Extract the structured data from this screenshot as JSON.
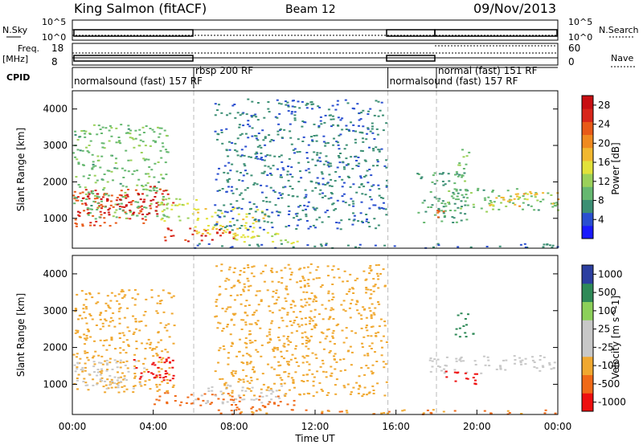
{
  "header": {
    "title": "King Salmon (fitACF)",
    "beam": "Beam 12",
    "date": "09/Nov/2013"
  },
  "summary_panel": {
    "nsky_label": "N.Sky",
    "nsky_ticks": [
      "10^5",
      "10^0"
    ],
    "nsearch_label": "N.Search",
    "nsearch_ticks": [
      "10^5",
      "10^0"
    ],
    "freq_label_1": "Freq.",
    "freq_label_2": "[MHz]",
    "freq_ticks": [
      "18",
      "8"
    ],
    "nave_label": "Nave",
    "nave_ticks": [
      "60",
      "0"
    ],
    "cpid_label": "CPID",
    "cpid_segments": [
      {
        "label": "normalsound (fast) 157 RF",
        "start": 0.0,
        "end": 6.0
      },
      {
        "label": "rbsp 200 RF",
        "start": 6.0,
        "end": 15.6
      },
      {
        "label": "normalsound (fast) 157 RF",
        "start": 15.6,
        "end": 18.0
      },
      {
        "label": "normal (fast) 151 RF",
        "start": 18.0,
        "end": 24.0
      }
    ]
  },
  "colors": {
    "power_scale": [
      "#1a1aff",
      "#2a4fd0",
      "#3c8f74",
      "#66b870",
      "#9bd15a",
      "#e2e23a",
      "#f2b830",
      "#f08a20",
      "#e85a18",
      "#d8261a",
      "#c80f12"
    ],
    "velocity_scale": [
      "#ee1010",
      "#f06a18",
      "#f0a830",
      "#c8c8c8",
      "#c8c8c8",
      "#8cd05a",
      "#2f8a58",
      "#2c3fa0"
    ]
  },
  "chart_data": [
    {
      "type": "heatmap",
      "name": "Power panel",
      "xlabel": "",
      "ylabel": "Slant Range [km]",
      "xlim": [
        0,
        24
      ],
      "ylim": [
        180,
        4500
      ],
      "yticks": [
        "1000",
        "2000",
        "3000",
        "4000"
      ],
      "colorbar_label": "Power [dB]",
      "colorbar_ticks": [
        "4",
        "8",
        "12",
        "16",
        "20",
        "24",
        "28"
      ],
      "colorbar_range": [
        0,
        30
      ],
      "cells": [
        {
          "x0": 0.0,
          "x1": 3.9,
          "y0": 800,
          "y1": 1900,
          "v": 24
        },
        {
          "x0": 0.0,
          "x1": 4.8,
          "y0": 1000,
          "y1": 3600,
          "v": 10
        },
        {
          "x0": 0.2,
          "x1": 4.2,
          "y0": 1100,
          "y1": 1700,
          "v": 28
        },
        {
          "x0": 4.0,
          "x1": 5.0,
          "y0": 1300,
          "y1": 1900,
          "v": 26
        },
        {
          "x0": 4.2,
          "x1": 6.2,
          "y0": 900,
          "y1": 1600,
          "v": 14
        },
        {
          "x0": 4.5,
          "x1": 8.0,
          "y0": 380,
          "y1": 750,
          "v": 26
        },
        {
          "x0": 6.0,
          "x1": 9.5,
          "y0": 500,
          "y1": 1300,
          "v": 16
        },
        {
          "x0": 8.0,
          "x1": 11.2,
          "y0": 300,
          "y1": 650,
          "v": 14
        },
        {
          "x0": 6.0,
          "x1": 24.0,
          "y0": 200,
          "y1": 330,
          "v": 6
        },
        {
          "x0": 7.0,
          "x1": 15.5,
          "y0": 700,
          "y1": 4300,
          "v": 6
        },
        {
          "x0": 17.0,
          "x1": 19.5,
          "y0": 900,
          "y1": 2300,
          "v": 8
        },
        {
          "x0": 17.8,
          "x1": 18.3,
          "y0": 1000,
          "y1": 1300,
          "v": 22
        },
        {
          "x0": 18.0,
          "x1": 24.0,
          "y0": 1200,
          "y1": 1850,
          "v": 10
        },
        {
          "x0": 20.5,
          "x1": 24.0,
          "y0": 1350,
          "y1": 1750,
          "v": 18
        },
        {
          "x0": 19.0,
          "x1": 19.6,
          "y0": 2000,
          "y1": 3000,
          "v": 10
        }
      ]
    },
    {
      "type": "heatmap",
      "name": "Velocity panel",
      "xlabel": "Time UT",
      "ylabel": "Slant Range [km]",
      "xlim": [
        0,
        24
      ],
      "ylim": [
        180,
        4500
      ],
      "yticks": [
        "1000",
        "2000",
        "3000",
        "4000"
      ],
      "xticks": [
        "00:00",
        "04:00",
        "08:00",
        "12:00",
        "16:00",
        "20:00",
        "00:00"
      ],
      "colorbar_label": "Velocity [m s^-1]",
      "colorbar_ticks": [
        "-1000",
        "-500",
        "-100",
        "-25",
        "25",
        "100",
        "500",
        "1000"
      ],
      "colorbar_range": [
        -1200,
        1200
      ],
      "cells": [
        {
          "x0": 0.0,
          "x1": 5.0,
          "y0": 800,
          "y1": 3600,
          "v": -60
        },
        {
          "x0": 0.0,
          "x1": 3.5,
          "y0": 900,
          "y1": 1700,
          "v": 0
        },
        {
          "x0": 3.0,
          "x1": 5.0,
          "y0": 1100,
          "y1": 1800,
          "v": -600
        },
        {
          "x0": 3.8,
          "x1": 4.6,
          "y0": 1200,
          "y1": 1600,
          "v": -1100
        },
        {
          "x0": 4.0,
          "x1": 8.5,
          "y0": 400,
          "y1": 800,
          "v": -200
        },
        {
          "x0": 6.0,
          "x1": 10.5,
          "y0": 500,
          "y1": 1000,
          "v": 0
        },
        {
          "x0": 8.0,
          "x1": 11.0,
          "y0": 300,
          "y1": 700,
          "v": -150
        },
        {
          "x0": 6.0,
          "x1": 24.0,
          "y0": 200,
          "y1": 330,
          "v": -100
        },
        {
          "x0": 7.0,
          "x1": 15.5,
          "y0": 700,
          "y1": 4300,
          "v": -40
        },
        {
          "x0": 17.5,
          "x1": 24.0,
          "y0": 1300,
          "y1": 1800,
          "v": 0
        },
        {
          "x0": 18.0,
          "x1": 20.0,
          "y0": 1000,
          "y1": 1400,
          "v": -600
        },
        {
          "x0": 18.8,
          "x1": 19.8,
          "y0": 2300,
          "y1": 3000,
          "v": 300
        }
      ]
    }
  ]
}
